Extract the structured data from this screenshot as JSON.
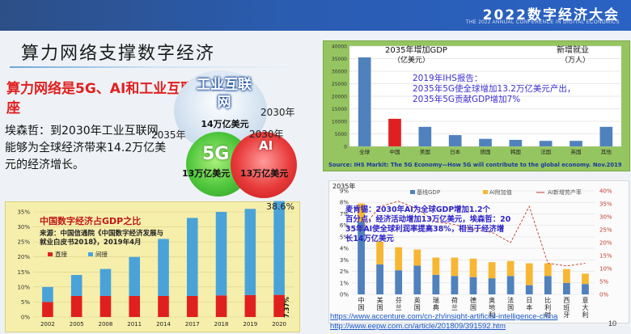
{
  "header": {
    "conference_title": "2022数字经济大会",
    "conference_subtitle": "THE 2022 ANNUAL CONFERENCE IN DIGITAL ECONOMICS",
    "background_color": "#2a5cb0"
  },
  "slide": {
    "title": "算力网络支撑数字经济",
    "red_heading": "算力网络是5G、AI和工业互联网的底座",
    "quote": "埃森哲：到2030年工业互联网能够为全球经济带来14.2万亿美元的经济增长。",
    "page_number": "10"
  },
  "venn": {
    "industrial_internet_label": "工业互联网",
    "industrial_internet_value": "14万亿美元",
    "year_2030_top": "2030年",
    "year_2035": "2035年",
    "year_2030_right": "2030年",
    "g5_label": "5G",
    "g5_value": "13万亿美元",
    "ai_label": "AI",
    "ai_value": "13万亿美元"
  },
  "links": {
    "accenture": "https://www.accenture.com/cn-zh/insight-artificial-intelligence-china",
    "eepw": "http://www.eepw.com.cn/article/201809/391592.htm"
  },
  "chart_data": [
    {
      "type": "bar",
      "title_left": "2035年增加GDP（亿美元）",
      "title_right": "新增就业（万人）",
      "annotation": "2019年IHS报告：2035年5G使全球增加13.2万亿美元产出，2035年5G贡献GDP增加7%",
      "source": "Source:  IHS Markit: The 5G Economy—How 5G will contribute to the global economy. Nov.2019",
      "categories": [
        "全球",
        "中国",
        "美国",
        "日本",
        "德国",
        "韩国",
        "法国",
        "英国",
        "其他"
      ],
      "values": [
        35500,
        11000,
        7800,
        4500,
        3000,
        2600,
        2200,
        2200,
        7800
      ],
      "highlight_index": 1,
      "ylim": [
        0,
        40000
      ],
      "yticks": [
        "0",
        "5000",
        "10000",
        "15000",
        "20000",
        "25000",
        "30000",
        "35000",
        "40000"
      ],
      "bar_color": "#4f81bd",
      "highlight_color": "#e0201f",
      "grid": true
    },
    {
      "type": "bar",
      "title": "中国数字经济占GDP之比",
      "source_note": "来源：中国信通院《中国数字经济发展与就业白皮书2018》，2019年4月",
      "categories": [
        "2002",
        "2005",
        "2008",
        "2011",
        "2014",
        "2017",
        "2018",
        "2019",
        "2020"
      ],
      "series": [
        {
          "name": "直接",
          "values": [
            5,
            7,
            7,
            7,
            7,
            7,
            7.2,
            7.3,
            7.37
          ],
          "color": "#e0201f"
        },
        {
          "name": "间接",
          "values": [
            5,
            7,
            9,
            13,
            19,
            26,
            27.8,
            28.7,
            31.23
          ],
          "color": "#4aa3d8"
        }
      ],
      "top_label": "38.6%",
      "side_label": "7.37%",
      "ylim": [
        0,
        35
      ],
      "yticks": [
        "0%",
        "5%",
        "10%",
        "15%",
        "20%",
        "25%",
        "30%",
        "35%"
      ],
      "grid": true
    },
    {
      "type": "bar",
      "year_label": "2035年",
      "annotation": "麦肯锡：2030年AI为全球GDP增加1.2个百分点，经济活动增加13万亿美元，埃森哲：2035年AI使全球利润率提高38%，相当于经济增长14万亿美元",
      "categories": [
        "中国",
        "美国",
        "芬兰",
        "英国",
        "瑞典",
        "荷兰",
        "德国",
        "奥地利",
        "法国",
        "日本",
        "比利时",
        "西班牙",
        "意大利"
      ],
      "series": [
        {
          "name": "基线GDP",
          "values": [
            6.3,
            2.6,
            2.1,
            2.5,
            1.7,
            1.6,
            1.5,
            1.4,
            1.6,
            0.8,
            1.6,
            1.0,
            0.9
          ],
          "color": "#4f81bd"
        },
        {
          "name": "AI附加值",
          "values": [
            1.6,
            2.0,
            2.0,
            1.4,
            1.5,
            1.6,
            1.6,
            1.4,
            1.3,
            1.9,
            1.1,
            1.2,
            0.9
          ],
          "color": "#f7b733"
        },
        {
          "name": "AI新增劳产率",
          "values": [
            25,
            34,
            36,
            33,
            28,
            27,
            25,
            24,
            20,
            34,
            12,
            11,
            12
          ],
          "color": "#c0392b"
        }
      ],
      "ylim_left": [
        0,
        9
      ],
      "ylim_right": [
        0,
        40
      ],
      "yticks_left": [
        "0%",
        "1%",
        "2%",
        "3%",
        "4%",
        "5%",
        "6%",
        "7%",
        "8%",
        "9%"
      ],
      "yticks_right": [
        "0%",
        "5%",
        "10%",
        "15%",
        "20%",
        "25%",
        "30%",
        "35%",
        "40%"
      ],
      "grid": true
    }
  ]
}
